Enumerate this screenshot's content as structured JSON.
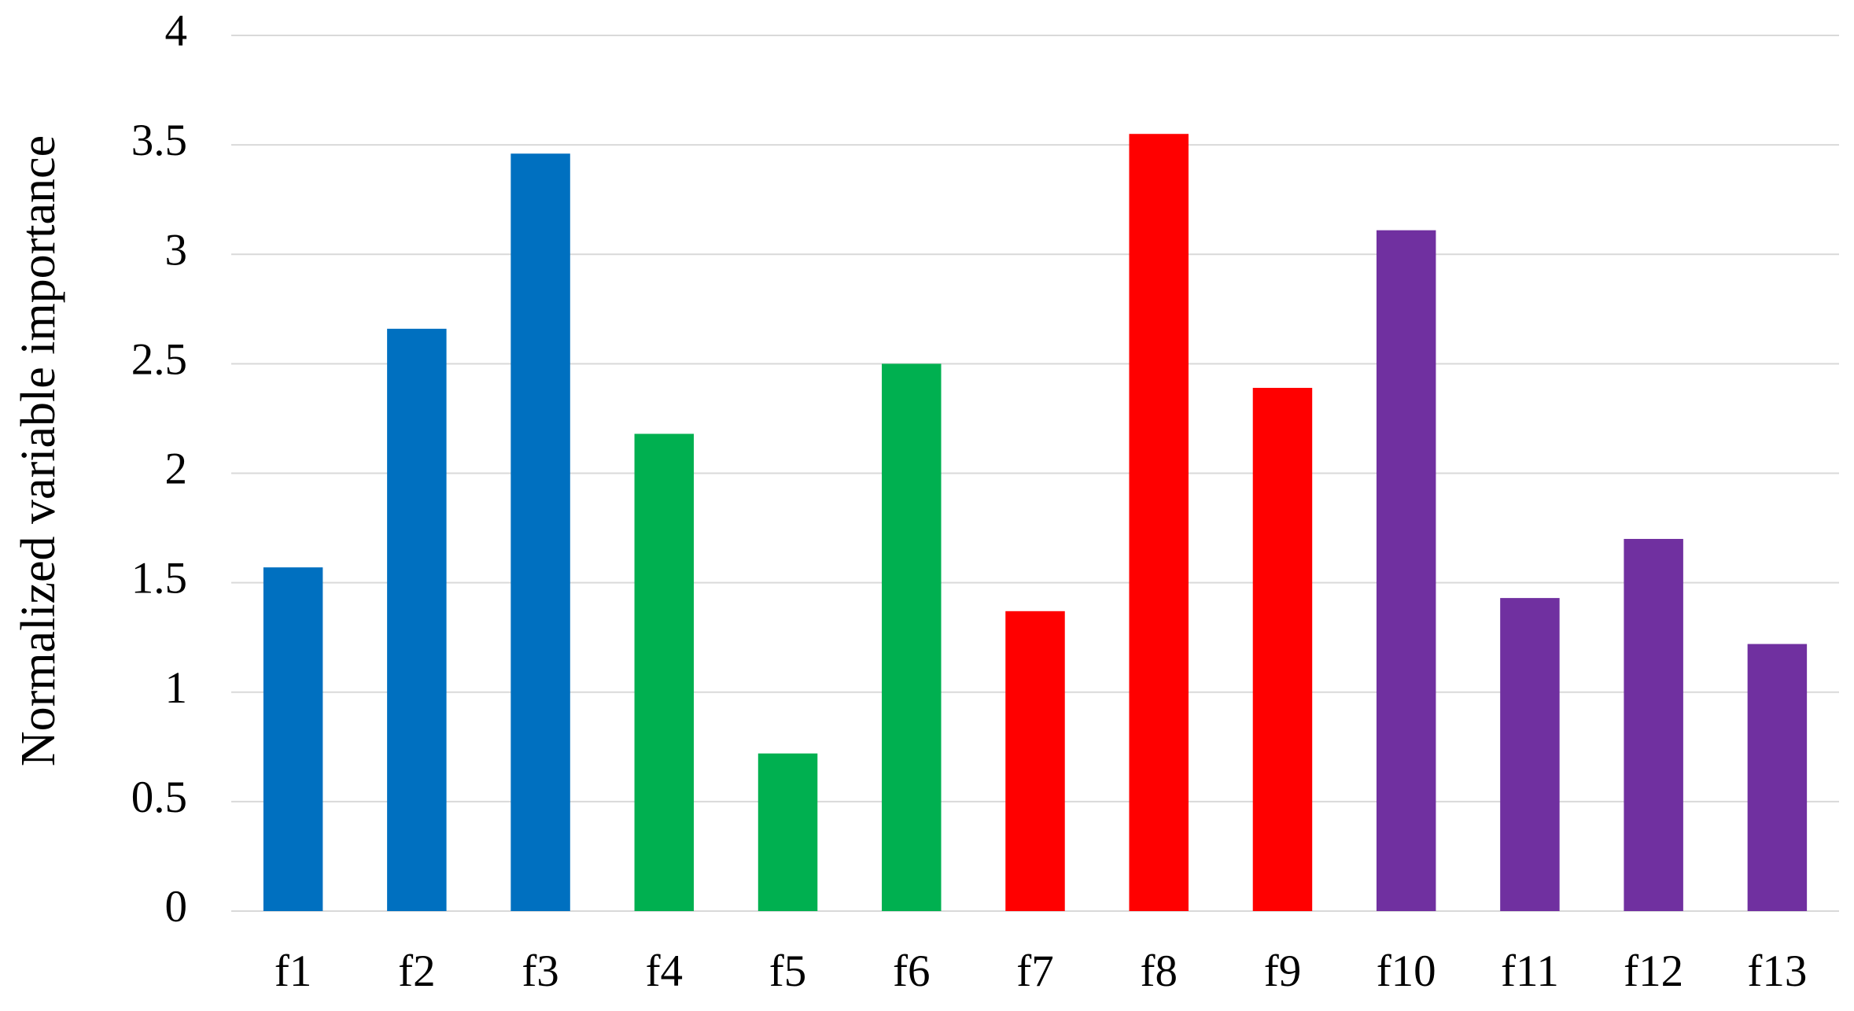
{
  "chart_data": {
    "type": "bar",
    "y_label": "Normalized variable importance",
    "categories": [
      "f1",
      "f2",
      "f3",
      "f4",
      "f5",
      "f6",
      "f7",
      "f8",
      "f9",
      "f10",
      "f11",
      "f12",
      "f13"
    ],
    "values": [
      1.57,
      2.66,
      3.46,
      2.18,
      0.72,
      2.5,
      1.37,
      3.55,
      2.39,
      3.11,
      1.43,
      1.7,
      1.22
    ],
    "colors": [
      "#0070c0",
      "#0070c0",
      "#0070c0",
      "#00b050",
      "#00b050",
      "#00b050",
      "#ff0000",
      "#ff0000",
      "#ff0000",
      "#7030a0",
      "#7030a0",
      "#7030a0",
      "#7030a0"
    ],
    "ylim": [
      0,
      4
    ],
    "yticks": [
      0,
      0.5,
      1,
      1.5,
      2,
      2.5,
      3,
      3.5,
      4
    ],
    "grid": true
  }
}
